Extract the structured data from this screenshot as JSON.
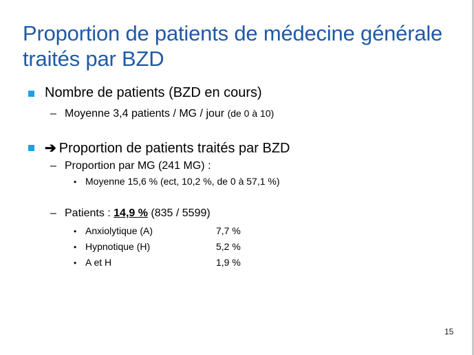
{
  "title": "Proportion de patients de médecine générale traités par BZD",
  "bullets": {
    "b1": "Nombre de patients (BZD en cours)",
    "b1_sub1_main": "Moyenne 3,4 patients / MG / jour ",
    "b1_sub1_small": "(de 0 à 10)",
    "b2_arrow": "➔",
    "b2": "Proportion de patients traités par BZD",
    "b2_sub1": "Proportion par MG (241 MG) :",
    "b2_sub1_item": "Moyenne 15,6 % (ect, 10,2 %, de 0 à 57,1 %)",
    "b2_sub2_prefix": "Patients : ",
    "b2_sub2_bold": "14,9 %",
    "b2_sub2_suffix": " (835 / 5599)",
    "items": [
      {
        "label": "Anxiolytique (A)",
        "value": "7,7 %"
      },
      {
        "label": "Hypnotique (H)",
        "value": "5,2 %"
      },
      {
        "label": "A et H",
        "value": "1,9 %"
      }
    ]
  },
  "dash_glyph": "–",
  "dot_glyph": "•",
  "page_number": "15",
  "colors": {
    "title": "#1f5aa6",
    "bullet": "#1aa3e0"
  }
}
